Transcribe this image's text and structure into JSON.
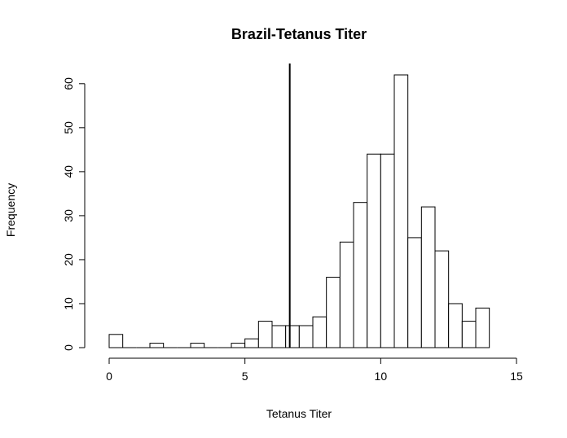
{
  "chart_data": {
    "type": "bar",
    "title": "Brazil-Tetanus Titer",
    "xlabel": "Tetanus Titer",
    "ylabel": "Frequency",
    "bin_width": 0.5,
    "bins": [
      {
        "x0": 0.0,
        "x1": 0.5,
        "count": 3
      },
      {
        "x0": 0.5,
        "x1": 1.0,
        "count": 0
      },
      {
        "x0": 1.0,
        "x1": 1.5,
        "count": 0
      },
      {
        "x0": 1.5,
        "x1": 2.0,
        "count": 1
      },
      {
        "x0": 2.0,
        "x1": 2.5,
        "count": 0
      },
      {
        "x0": 2.5,
        "x1": 3.0,
        "count": 0
      },
      {
        "x0": 3.0,
        "x1": 3.5,
        "count": 1
      },
      {
        "x0": 3.5,
        "x1": 4.0,
        "count": 0
      },
      {
        "x0": 4.0,
        "x1": 4.5,
        "count": 0
      },
      {
        "x0": 4.5,
        "x1": 5.0,
        "count": 1
      },
      {
        "x0": 5.0,
        "x1": 5.5,
        "count": 2
      },
      {
        "x0": 5.5,
        "x1": 6.0,
        "count": 6
      },
      {
        "x0": 6.0,
        "x1": 6.5,
        "count": 5
      },
      {
        "x0": 6.5,
        "x1": 7.0,
        "count": 5
      },
      {
        "x0": 7.0,
        "x1": 7.5,
        "count": 5
      },
      {
        "x0": 7.5,
        "x1": 8.0,
        "count": 7
      },
      {
        "x0": 8.0,
        "x1": 8.5,
        "count": 16
      },
      {
        "x0": 8.5,
        "x1": 9.0,
        "count": 24
      },
      {
        "x0": 9.0,
        "x1": 9.5,
        "count": 33
      },
      {
        "x0": 9.5,
        "x1": 10.0,
        "count": 44
      },
      {
        "x0": 10.0,
        "x1": 10.5,
        "count": 44
      },
      {
        "x0": 10.5,
        "x1": 11.0,
        "count": 62
      },
      {
        "x0": 11.0,
        "x1": 11.5,
        "count": 25
      },
      {
        "x0": 11.5,
        "x1": 12.0,
        "count": 32
      },
      {
        "x0": 12.0,
        "x1": 12.5,
        "count": 22
      },
      {
        "x0": 12.5,
        "x1": 13.0,
        "count": 10
      },
      {
        "x0": 13.0,
        "x1": 13.5,
        "count": 6
      },
      {
        "x0": 13.5,
        "x1": 14.0,
        "count": 9
      }
    ],
    "vline_x": 6.65,
    "xlim": [
      0,
      15
    ],
    "ylim": [
      0,
      62
    ],
    "x_ticks": [
      0,
      5,
      10,
      15
    ],
    "y_ticks": [
      0,
      10,
      20,
      30,
      40,
      50,
      60
    ],
    "x_tick_labels": [
      "0",
      "5",
      "10",
      "15"
    ],
    "y_tick_labels": [
      "0",
      "10",
      "20",
      "30",
      "40",
      "50",
      "60"
    ],
    "grid": false,
    "colors": {
      "bar_fill": "#ffffff",
      "bar_stroke": "#000000",
      "vline": "#000000"
    }
  }
}
